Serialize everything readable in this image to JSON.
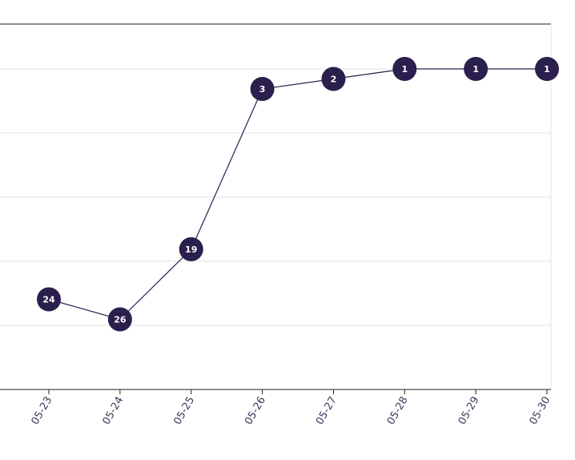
{
  "chart_data": {
    "type": "line",
    "x": [
      "05-23",
      "05-24",
      "05-25",
      "05-26",
      "05-27",
      "05-28",
      "05-29",
      "05-30"
    ],
    "series": [
      {
        "values": [
          24,
          26,
          19,
          3,
          2,
          1,
          1,
          1
        ],
        "labels": [
          "24",
          "26",
          "19",
          "3",
          "2",
          "1",
          "1",
          "1"
        ]
      }
    ],
    "y_axis": {
      "reversed": true,
      "ylim": [
        1,
        32
      ],
      "grid": true,
      "tick_labels_visible": false
    },
    "xlabel": "",
    "ylabel": "",
    "title": "",
    "legend": "none",
    "colors": {
      "line": "#2a1f4d",
      "marker": "#2a1f4d",
      "marker_text": "#ffffff",
      "grid": "#e3e3e3",
      "top_border": "#222222",
      "tick_label": "#3b3b5c"
    }
  }
}
